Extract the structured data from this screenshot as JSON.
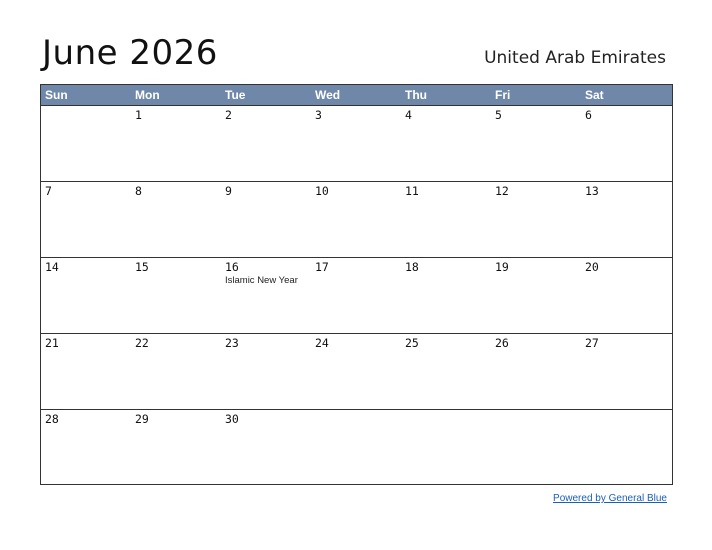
{
  "header": {
    "title": "June 2026",
    "country": "United Arab Emirates"
  },
  "calendar": {
    "weekdays": [
      "Sun",
      "Mon",
      "Tue",
      "Wed",
      "Thu",
      "Fri",
      "Sat"
    ],
    "weeks": [
      [
        {
          "day": ""
        },
        {
          "day": "1"
        },
        {
          "day": "2"
        },
        {
          "day": "3"
        },
        {
          "day": "4"
        },
        {
          "day": "5"
        },
        {
          "day": "6"
        }
      ],
      [
        {
          "day": "7"
        },
        {
          "day": "8"
        },
        {
          "day": "9"
        },
        {
          "day": "10"
        },
        {
          "day": "11"
        },
        {
          "day": "12"
        },
        {
          "day": "13"
        }
      ],
      [
        {
          "day": "14"
        },
        {
          "day": "15"
        },
        {
          "day": "16",
          "holiday": "Islamic New Year"
        },
        {
          "day": "17"
        },
        {
          "day": "18"
        },
        {
          "day": "19"
        },
        {
          "day": "20"
        }
      ],
      [
        {
          "day": "21"
        },
        {
          "day": "22"
        },
        {
          "day": "23"
        },
        {
          "day": "24"
        },
        {
          "day": "25"
        },
        {
          "day": "26"
        },
        {
          "day": "27"
        }
      ],
      [
        {
          "day": "28"
        },
        {
          "day": "29"
        },
        {
          "day": "30"
        },
        {
          "day": ""
        },
        {
          "day": ""
        },
        {
          "day": ""
        },
        {
          "day": ""
        }
      ]
    ],
    "header_color": "#6f88a9"
  },
  "footer": {
    "link_text": "Powered by General Blue"
  }
}
